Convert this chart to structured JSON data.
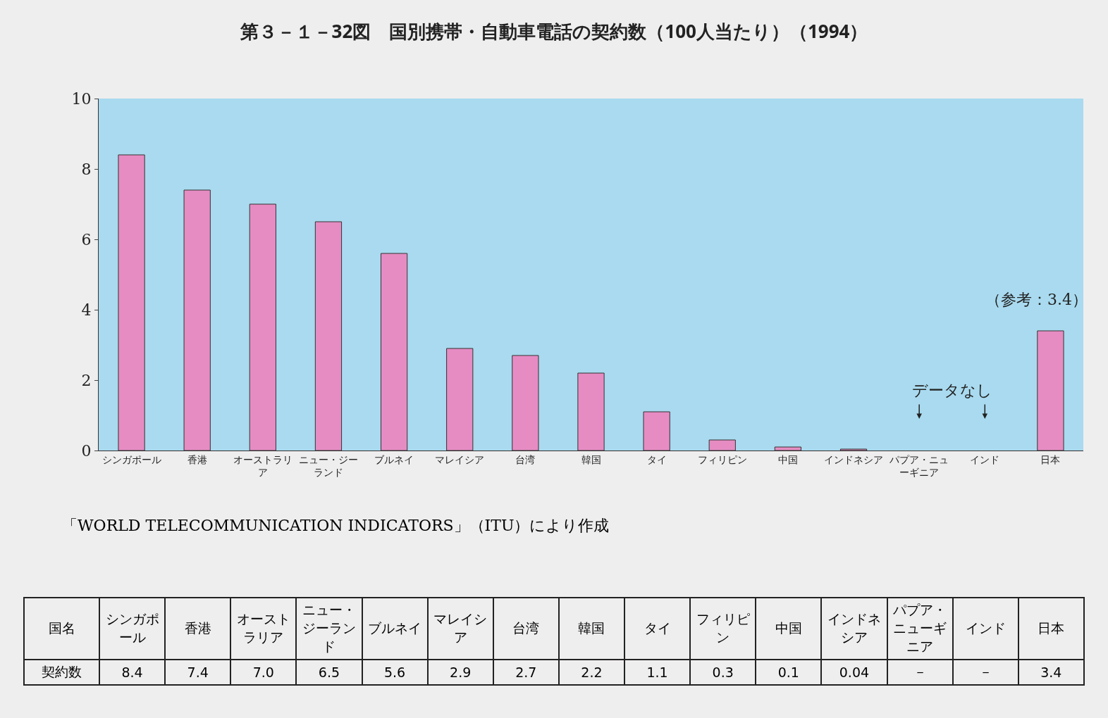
{
  "chart_data": {
    "type": "bar",
    "title": "第３－１－32図　国別携帯・自動車電話の契約数（100人当たり）（1994）",
    "categories": [
      "シンガポール",
      "香港",
      "オーストラリア",
      "ニュー・ジーランド",
      "ブルネイ",
      "マレイシア",
      "台湾",
      "韓国",
      "タイ",
      "フィリピン",
      "中国",
      "インドネシア",
      "パプア・ニューギニア",
      "インド",
      "日本"
    ],
    "values": [
      8.4,
      7.4,
      7.0,
      6.5,
      5.6,
      2.9,
      2.7,
      2.2,
      1.1,
      0.3,
      0.1,
      0.04,
      null,
      null,
      3.4
    ],
    "value_labels": [
      "8.4",
      "7.4",
      "7.0",
      "6.5",
      "5.6",
      "2.9",
      "2.7",
      "2.2",
      "1.1",
      "0.3",
      "0.1",
      "0.04",
      "－",
      "－",
      "3.4"
    ],
    "color": "#e68cc3",
    "ylim": [
      0,
      10
    ],
    "yticks": [
      0,
      2,
      4,
      6,
      8,
      10
    ],
    "grid": false,
    "annotations": [
      {
        "text": "（参考：3.4）",
        "x": "日本",
        "y": 3.4
      },
      "データなし",
      "「WORLD TELECOMMUNICATION INDICATORS」（ITU）により作成",
      "国名",
      "契約数"
    ]
  }
}
